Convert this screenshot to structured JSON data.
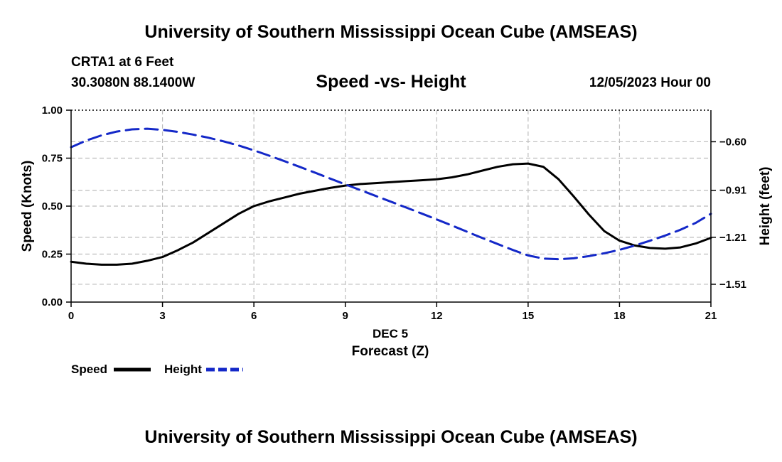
{
  "header": {
    "title": "University of Southern Mississippi Ocean Cube (AMSEAS)",
    "station": "CRTA1 at 6 Feet",
    "coords": "30.3080N  88.1400W",
    "chart_title": "Speed -vs- Height",
    "date": "12/05/2023 Hour 00"
  },
  "footer": {
    "title": "University of Southern Mississippi Ocean Cube (AMSEAS)"
  },
  "chart_data": {
    "type": "line",
    "title": "Speed -vs- Height",
    "xlabel": "Forecast (Z)",
    "xsublabel": "DEC 5",
    "ylabel": "Speed (Knots)",
    "y2label": "Height (feet)",
    "xlim": [
      0,
      21
    ],
    "ylim": [
      0,
      1
    ],
    "y2lim": [
      -1.6237,
      -0.3984
    ],
    "xticks": [
      0,
      3,
      6,
      9,
      12,
      15,
      18,
      21
    ],
    "xtick_labels": [
      "0",
      "3",
      "6",
      "9",
      "12",
      "15",
      "18",
      "21"
    ],
    "yticks": [
      0,
      0.25,
      0.5,
      0.75,
      1.0
    ],
    "ytick_labels": [
      "0.00",
      "0.25",
      "0.50",
      "0.75",
      "1.00"
    ],
    "y2ticks": [
      -0.6,
      -0.91,
      -1.21,
      -1.51
    ],
    "y2tick_labels": [
      "−0.60",
      "−0.91",
      "−1.21",
      "−1.51"
    ],
    "grid": true,
    "series": [
      {
        "name": "Speed",
        "axis": "left",
        "color": "#000000",
        "dash": "solid",
        "x": [
          0,
          0.5,
          1,
          1.5,
          2,
          2.5,
          3,
          3.5,
          4,
          4.5,
          5,
          5.5,
          6,
          6.5,
          7,
          7.5,
          8,
          8.5,
          9,
          9.5,
          10,
          10.5,
          11,
          11.5,
          12,
          12.5,
          13,
          13.5,
          14,
          14.5,
          15,
          15.5,
          16,
          16.5,
          17,
          17.5,
          18,
          18.5,
          19,
          19.5,
          20,
          20.5,
          21
        ],
        "values": [
          0.21,
          0.2,
          0.195,
          0.195,
          0.2,
          0.215,
          0.235,
          0.27,
          0.31,
          0.36,
          0.41,
          0.46,
          0.5,
          0.525,
          0.545,
          0.565,
          0.58,
          0.595,
          0.607,
          0.615,
          0.62,
          0.625,
          0.63,
          0.635,
          0.64,
          0.65,
          0.665,
          0.685,
          0.705,
          0.718,
          0.722,
          0.705,
          0.64,
          0.55,
          0.455,
          0.37,
          0.32,
          0.295,
          0.282,
          0.278,
          0.285,
          0.305,
          0.335
        ]
      },
      {
        "name": "Height",
        "axis": "right",
        "color": "#1428c8",
        "dash": "dashed",
        "x": [
          0,
          0.5,
          1,
          1.5,
          2,
          2.5,
          3,
          3.5,
          4,
          4.5,
          5,
          5.5,
          6,
          6.5,
          7,
          7.5,
          8,
          8.5,
          9,
          9.5,
          10,
          10.5,
          11,
          11.5,
          12,
          12.5,
          13,
          13.5,
          14,
          14.5,
          15,
          15.5,
          16,
          16.5,
          17,
          17.5,
          18,
          18.5,
          19,
          19.5,
          20,
          20.5,
          21
        ],
        "values": [
          -0.635,
          -0.592,
          -0.559,
          -0.535,
          -0.521,
          -0.517,
          -0.524,
          -0.537,
          -0.554,
          -0.574,
          -0.597,
          -0.624,
          -0.655,
          -0.689,
          -0.724,
          -0.76,
          -0.797,
          -0.835,
          -0.872,
          -0.909,
          -0.946,
          -0.983,
          -1.02,
          -1.058,
          -1.096,
          -1.135,
          -1.175,
          -1.215,
          -1.253,
          -1.291,
          -1.326,
          -1.346,
          -1.35,
          -1.344,
          -1.33,
          -1.312,
          -1.29,
          -1.263,
          -1.232,
          -1.199,
          -1.162,
          -1.118,
          -1.06
        ]
      }
    ],
    "legend": [
      {
        "label": "Speed",
        "color": "#000000",
        "dash": "solid"
      },
      {
        "label": "Height",
        "color": "#1428c8",
        "dash": "dashed"
      }
    ]
  }
}
